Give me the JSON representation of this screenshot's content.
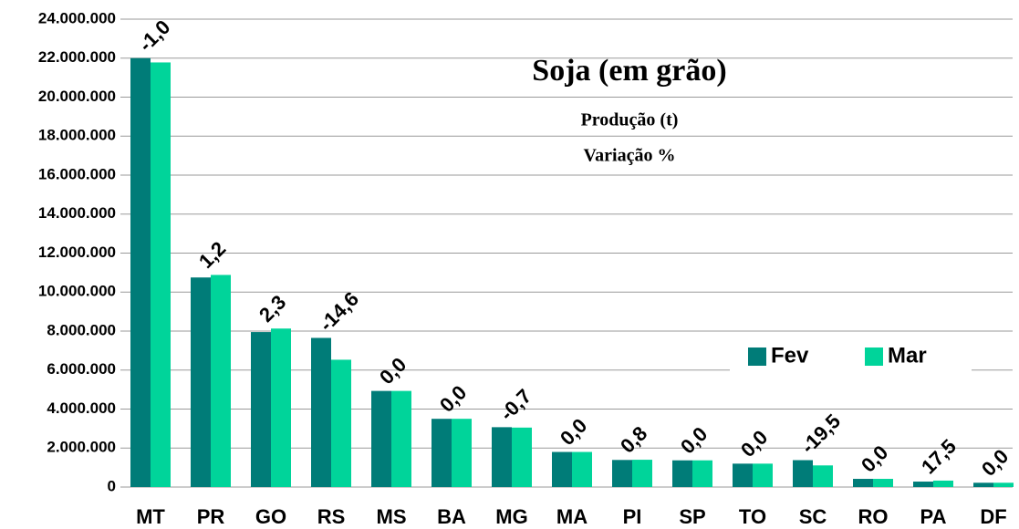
{
  "chart_data": {
    "type": "bar",
    "title": "Soja (em grão)",
    "subtitle": "Produção (t)",
    "annotation": "Variação %",
    "categories": [
      "MT",
      "PR",
      "GO",
      "RS",
      "MS",
      "BA",
      "MG",
      "MA",
      "PI",
      "SP",
      "TO",
      "SC",
      "RO",
      "PA",
      "DF"
    ],
    "series": [
      {
        "name": "Fev",
        "color": "#007c78",
        "values": [
          22000000,
          10750000,
          7950000,
          7650000,
          4930000,
          3500000,
          3070000,
          1800000,
          1390000,
          1370000,
          1200000,
          1380000,
          420000,
          280000,
          220000
        ]
      },
      {
        "name": "Mar",
        "color": "#00d49a",
        "values": [
          21780000,
          10880000,
          8130000,
          6530000,
          4930000,
          3500000,
          3050000,
          1800000,
          1400000,
          1370000,
          1200000,
          1110000,
          420000,
          330000,
          220000
        ]
      }
    ],
    "variation_labels": [
      "-1,0",
      "1,2",
      "2,3",
      "-14,6",
      "0,0",
      "0,0",
      "-0,7",
      "0,0",
      "0,8",
      "0,0",
      "0,0",
      "-19,5",
      "0,0",
      "17,5",
      "0,0"
    ],
    "ylim": [
      0,
      24000000
    ],
    "yticks": [
      0,
      {
        "value": 2000000,
        "label": "2.000.000"
      },
      {
        "value": 4000000,
        "label": "4.000.000"
      },
      {
        "value": 6000000,
        "label": "6.000.000"
      },
      {
        "value": 8000000,
        "label": "8.000.000"
      },
      {
        "value": 10000000,
        "label": "10.000.000"
      },
      {
        "value": 12000000,
        "label": "12.000.000"
      },
      {
        "value": 14000000,
        "label": "14.000.000"
      },
      {
        "value": 16000000,
        "label": "16.000.000"
      },
      {
        "value": 18000000,
        "label": "18.000.000"
      },
      {
        "value": 20000000,
        "label": "20.000.000"
      },
      {
        "value": 22000000,
        "label": "22.000.000"
      },
      {
        "value": 24000000,
        "label": "24.000.000"
      }
    ],
    "grid": true,
    "legend": "right"
  }
}
